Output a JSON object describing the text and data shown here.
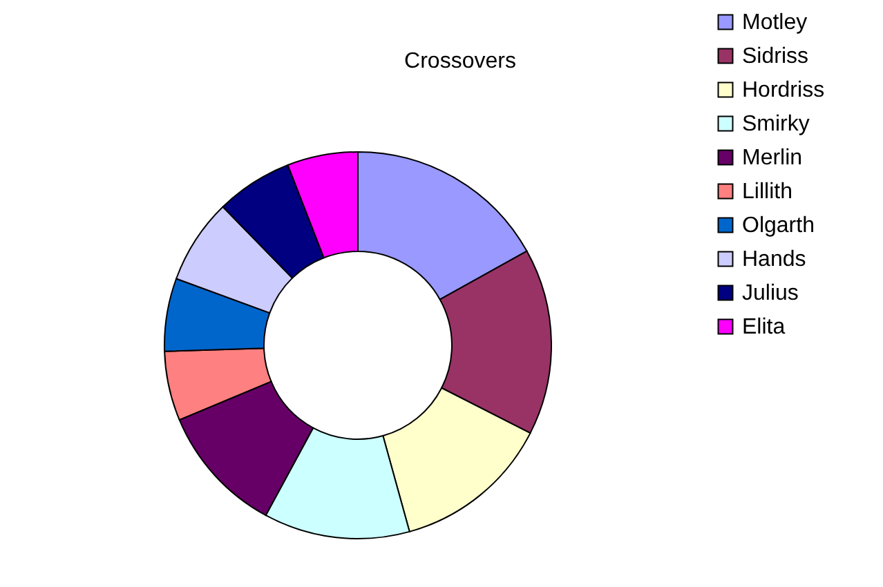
{
  "chart_data": {
    "type": "donut",
    "title": "Crossovers",
    "categories": [
      "Motley",
      "Sidriss",
      "Hordriss",
      "Smirky",
      "Merlin",
      "Lillith",
      "Olgarth",
      "Hands",
      "Julius",
      "Elita"
    ],
    "values": [
      16.9,
      15.6,
      13.2,
      12.2,
      10.8,
      5.8,
      6.1,
      7.1,
      6.4,
      5.9
    ],
    "colors": [
      "#9999ff",
      "#993366",
      "#ffffcc",
      "#ccffff",
      "#660066",
      "#ff8080",
      "#0066cc",
      "#ccccff",
      "#000080",
      "#ff00ff"
    ],
    "legend": "right"
  }
}
